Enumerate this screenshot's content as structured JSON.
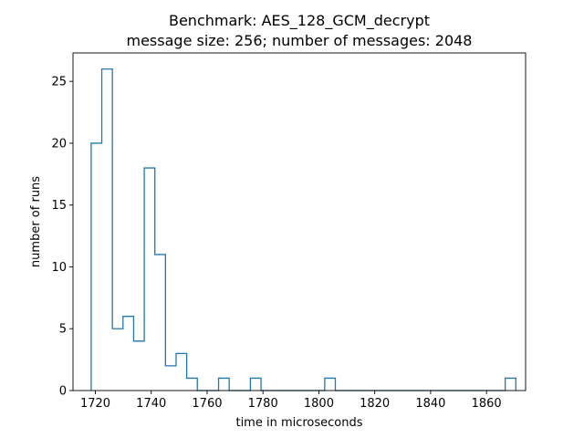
{
  "chart_data": {
    "type": "histogram",
    "title": "Benchmark: AES_128_GCM_decrypt",
    "subtitle": "message size: 256; number of messages: 2048",
    "xlabel": "time in microseconds",
    "ylabel": "number of runs",
    "xlim": [
      1712,
      1874
    ],
    "ylim": [
      0,
      27.3
    ],
    "xticks": [
      1720,
      1740,
      1760,
      1780,
      1800,
      1820,
      1840,
      1860
    ],
    "yticks": [
      0,
      5,
      10,
      15,
      20,
      25
    ],
    "bins": [
      {
        "x0": 1718.5,
        "x1": 1722.3,
        "count": 20
      },
      {
        "x0": 1722.3,
        "x1": 1726.1,
        "count": 26
      },
      {
        "x0": 1726.1,
        "x1": 1729.9,
        "count": 5
      },
      {
        "x0": 1729.9,
        "x1": 1733.7,
        "count": 6
      },
      {
        "x0": 1733.7,
        "x1": 1737.5,
        "count": 4
      },
      {
        "x0": 1737.5,
        "x1": 1741.3,
        "count": 18
      },
      {
        "x0": 1741.3,
        "x1": 1745.1,
        "count": 11
      },
      {
        "x0": 1745.1,
        "x1": 1748.9,
        "count": 2
      },
      {
        "x0": 1748.9,
        "x1": 1752.7,
        "count": 3
      },
      {
        "x0": 1752.7,
        "x1": 1756.5,
        "count": 1
      },
      {
        "x0": 1756.5,
        "x1": 1760.3,
        "count": 0
      },
      {
        "x0": 1760.3,
        "x1": 1764.1,
        "count": 0
      },
      {
        "x0": 1764.1,
        "x1": 1767.9,
        "count": 1
      },
      {
        "x0": 1767.9,
        "x1": 1771.7,
        "count": 0
      },
      {
        "x0": 1771.7,
        "x1": 1775.5,
        "count": 0
      },
      {
        "x0": 1775.5,
        "x1": 1779.3,
        "count": 1
      },
      {
        "x0": 1779.3,
        "x1": 1783.1,
        "count": 0
      },
      {
        "x0": 1783.1,
        "x1": 1786.9,
        "count": 0
      },
      {
        "x0": 1786.9,
        "x1": 1790.7,
        "count": 0
      },
      {
        "x0": 1790.7,
        "x1": 1794.5,
        "count": 0
      },
      {
        "x0": 1794.5,
        "x1": 1798.3,
        "count": 0
      },
      {
        "x0": 1798.3,
        "x1": 1802.1,
        "count": 0
      },
      {
        "x0": 1802.1,
        "x1": 1805.9,
        "count": 1
      },
      {
        "x0": 1805.9,
        "x1": 1809.7,
        "count": 0
      },
      {
        "x0": 1809.7,
        "x1": 1813.5,
        "count": 0
      },
      {
        "x0": 1813.5,
        "x1": 1817.3,
        "count": 0
      },
      {
        "x0": 1817.3,
        "x1": 1821.1,
        "count": 0
      },
      {
        "x0": 1821.1,
        "x1": 1824.9,
        "count": 0
      },
      {
        "x0": 1824.9,
        "x1": 1828.7,
        "count": 0
      },
      {
        "x0": 1828.7,
        "x1": 1832.5,
        "count": 0
      },
      {
        "x0": 1832.5,
        "x1": 1836.3,
        "count": 0
      },
      {
        "x0": 1836.3,
        "x1": 1840.1,
        "count": 0
      },
      {
        "x0": 1840.1,
        "x1": 1843.9,
        "count": 0
      },
      {
        "x0": 1843.9,
        "x1": 1847.7,
        "count": 0
      },
      {
        "x0": 1847.7,
        "x1": 1851.5,
        "count": 0
      },
      {
        "x0": 1851.5,
        "x1": 1855.3,
        "count": 0
      },
      {
        "x0": 1855.3,
        "x1": 1859.1,
        "count": 0
      },
      {
        "x0": 1859.1,
        "x1": 1862.9,
        "count": 0
      },
      {
        "x0": 1862.9,
        "x1": 1866.7,
        "count": 0
      },
      {
        "x0": 1866.7,
        "x1": 1870.5,
        "count": 1
      }
    ],
    "histtype": "step",
    "line_color": "#1f77b4",
    "grid": false
  }
}
